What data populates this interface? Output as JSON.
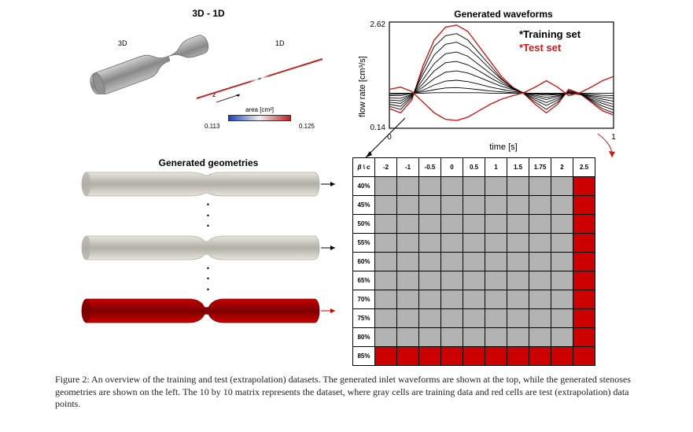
{
  "topLeft": {
    "title": "3D - 1D",
    "label3d": "3D",
    "label1d": "1D",
    "zLabel": "z",
    "colorbarTitle": "area [cm²]",
    "colorbarMin": "0.113",
    "colorbarMax": "0.125",
    "tube3dFill": "#a9a9a9",
    "tube3dStroke": "#6e6e6e",
    "line1dGradient": [
      "#2040c0",
      "#f0f0f0",
      "#c02020"
    ]
  },
  "waveformChart": {
    "title": "Generated waveforms",
    "xlabel": "time [s]",
    "ylabel": "flow rate [cm³/s]",
    "xlim": [
      0,
      1
    ],
    "ylim": [
      0.14,
      2.62
    ],
    "yTickTop": "2.62",
    "yTickBottom": "0.14",
    "xTickLeft": "0",
    "xTickRight": "1",
    "legend": {
      "train": "*Training set",
      "test": "*Test set",
      "trainColor": "#000000",
      "testColor": "#cc1a1a"
    },
    "series": [
      {
        "color": "#cc1a1a",
        "width": 1.4,
        "pts": [
          [
            0,
            0.6
          ],
          [
            0.05,
            0.5
          ],
          [
            0.1,
            0.8
          ],
          [
            0.15,
            1.6
          ],
          [
            0.2,
            2.2
          ],
          [
            0.25,
            2.5
          ],
          [
            0.3,
            2.55
          ],
          [
            0.35,
            2.4
          ],
          [
            0.4,
            2.05
          ],
          [
            0.45,
            1.7
          ],
          [
            0.5,
            1.35
          ],
          [
            0.55,
            1.1
          ],
          [
            0.6,
            0.95
          ],
          [
            0.65,
            0.7
          ],
          [
            0.7,
            0.5
          ],
          [
            0.75,
            0.7
          ],
          [
            0.8,
            1.05
          ],
          [
            0.85,
            0.95
          ],
          [
            0.9,
            0.75
          ],
          [
            0.95,
            0.55
          ],
          [
            1.0,
            0.45
          ]
        ]
      },
      {
        "color": "#000000",
        "width": 0.9,
        "pts": [
          [
            0,
            0.65
          ],
          [
            0.05,
            0.58
          ],
          [
            0.1,
            0.85
          ],
          [
            0.15,
            1.5
          ],
          [
            0.2,
            2.05
          ],
          [
            0.25,
            2.3
          ],
          [
            0.3,
            2.35
          ],
          [
            0.35,
            2.2
          ],
          [
            0.4,
            1.9
          ],
          [
            0.45,
            1.6
          ],
          [
            0.5,
            1.3
          ],
          [
            0.55,
            1.08
          ],
          [
            0.6,
            0.95
          ],
          [
            0.65,
            0.75
          ],
          [
            0.7,
            0.58
          ],
          [
            0.75,
            0.75
          ],
          [
            0.8,
            1.02
          ],
          [
            0.85,
            0.95
          ],
          [
            0.9,
            0.78
          ],
          [
            0.95,
            0.6
          ],
          [
            1.0,
            0.5
          ]
        ]
      },
      {
        "color": "#000000",
        "width": 0.9,
        "pts": [
          [
            0,
            0.7
          ],
          [
            0.05,
            0.65
          ],
          [
            0.1,
            0.88
          ],
          [
            0.15,
            1.4
          ],
          [
            0.2,
            1.85
          ],
          [
            0.25,
            2.1
          ],
          [
            0.3,
            2.15
          ],
          [
            0.35,
            2.02
          ],
          [
            0.4,
            1.78
          ],
          [
            0.45,
            1.52
          ],
          [
            0.5,
            1.28
          ],
          [
            0.55,
            1.08
          ],
          [
            0.6,
            0.96
          ],
          [
            0.65,
            0.8
          ],
          [
            0.7,
            0.67
          ],
          [
            0.75,
            0.8
          ],
          [
            0.8,
            1.0
          ],
          [
            0.85,
            0.94
          ],
          [
            0.9,
            0.8
          ],
          [
            0.95,
            0.66
          ],
          [
            1.0,
            0.57
          ]
        ]
      },
      {
        "color": "#000000",
        "width": 0.9,
        "pts": [
          [
            0,
            0.75
          ],
          [
            0.05,
            0.72
          ],
          [
            0.1,
            0.9
          ],
          [
            0.15,
            1.28
          ],
          [
            0.2,
            1.65
          ],
          [
            0.25,
            1.88
          ],
          [
            0.3,
            1.92
          ],
          [
            0.35,
            1.82
          ],
          [
            0.4,
            1.62
          ],
          [
            0.45,
            1.42
          ],
          [
            0.5,
            1.23
          ],
          [
            0.55,
            1.07
          ],
          [
            0.6,
            0.96
          ],
          [
            0.65,
            0.84
          ],
          [
            0.7,
            0.74
          ],
          [
            0.75,
            0.84
          ],
          [
            0.8,
            0.98
          ],
          [
            0.85,
            0.93
          ],
          [
            0.9,
            0.82
          ],
          [
            0.95,
            0.72
          ],
          [
            1.0,
            0.64
          ]
        ]
      },
      {
        "color": "#000000",
        "width": 0.9,
        "pts": [
          [
            0,
            0.8
          ],
          [
            0.05,
            0.78
          ],
          [
            0.1,
            0.92
          ],
          [
            0.15,
            1.18
          ],
          [
            0.2,
            1.48
          ],
          [
            0.25,
            1.67
          ],
          [
            0.3,
            1.7
          ],
          [
            0.35,
            1.62
          ],
          [
            0.4,
            1.48
          ],
          [
            0.45,
            1.32
          ],
          [
            0.5,
            1.18
          ],
          [
            0.55,
            1.06
          ],
          [
            0.6,
            0.97
          ],
          [
            0.65,
            0.88
          ],
          [
            0.7,
            0.81
          ],
          [
            0.75,
            0.88
          ],
          [
            0.8,
            0.97
          ],
          [
            0.85,
            0.93
          ],
          [
            0.9,
            0.85
          ],
          [
            0.95,
            0.77
          ],
          [
            1.0,
            0.7
          ]
        ]
      },
      {
        "color": "#000000",
        "width": 0.9,
        "pts": [
          [
            0,
            0.85
          ],
          [
            0.05,
            0.84
          ],
          [
            0.1,
            0.93
          ],
          [
            0.15,
            1.1
          ],
          [
            0.2,
            1.3
          ],
          [
            0.25,
            1.45
          ],
          [
            0.3,
            1.48
          ],
          [
            0.35,
            1.43
          ],
          [
            0.4,
            1.33
          ],
          [
            0.45,
            1.22
          ],
          [
            0.5,
            1.12
          ],
          [
            0.55,
            1.04
          ],
          [
            0.6,
            0.97
          ],
          [
            0.65,
            0.91
          ],
          [
            0.7,
            0.86
          ],
          [
            0.75,
            0.9
          ],
          [
            0.8,
            0.95
          ],
          [
            0.85,
            0.93
          ],
          [
            0.9,
            0.88
          ],
          [
            0.95,
            0.82
          ],
          [
            1.0,
            0.77
          ]
        ]
      },
      {
        "color": "#000000",
        "width": 0.9,
        "pts": [
          [
            0,
            0.9
          ],
          [
            0.05,
            0.9
          ],
          [
            0.1,
            0.95
          ],
          [
            0.15,
            1.03
          ],
          [
            0.2,
            1.15
          ],
          [
            0.25,
            1.24
          ],
          [
            0.3,
            1.26
          ],
          [
            0.35,
            1.23
          ],
          [
            0.4,
            1.17
          ],
          [
            0.45,
            1.1
          ],
          [
            0.5,
            1.05
          ],
          [
            0.55,
            1.0
          ],
          [
            0.6,
            0.97
          ],
          [
            0.65,
            0.94
          ],
          [
            0.7,
            0.91
          ],
          [
            0.75,
            0.93
          ],
          [
            0.8,
            0.95
          ],
          [
            0.85,
            0.93
          ],
          [
            0.9,
            0.9
          ],
          [
            0.95,
            0.87
          ],
          [
            1.0,
            0.84
          ]
        ]
      },
      {
        "color": "#000000",
        "width": 0.9,
        "pts": [
          [
            0,
            0.93
          ],
          [
            0.05,
            0.94
          ],
          [
            0.1,
            0.96
          ],
          [
            0.15,
            0.99
          ],
          [
            0.2,
            1.04
          ],
          [
            0.25,
            1.08
          ],
          [
            0.3,
            1.09
          ],
          [
            0.35,
            1.07
          ],
          [
            0.4,
            1.04
          ],
          [
            0.45,
            1.01
          ],
          [
            0.5,
            0.99
          ],
          [
            0.55,
            0.97
          ],
          [
            0.6,
            0.96
          ],
          [
            0.65,
            0.95
          ],
          [
            0.7,
            0.94
          ],
          [
            0.75,
            0.94
          ],
          [
            0.8,
            0.95
          ],
          [
            0.85,
            0.94
          ],
          [
            0.9,
            0.93
          ],
          [
            0.95,
            0.91
          ],
          [
            1.0,
            0.9
          ]
        ]
      },
      {
        "color": "#000000",
        "width": 0.9,
        "pts": [
          [
            0,
            0.96
          ],
          [
            0.05,
            0.96
          ],
          [
            0.1,
            0.96
          ],
          [
            0.15,
            0.96
          ],
          [
            0.2,
            0.97
          ],
          [
            0.25,
            0.97
          ],
          [
            0.3,
            0.97
          ],
          [
            0.35,
            0.97
          ],
          [
            0.4,
            0.97
          ],
          [
            0.45,
            0.96
          ],
          [
            0.5,
            0.96
          ],
          [
            0.55,
            0.96
          ],
          [
            0.6,
            0.96
          ],
          [
            0.65,
            0.96
          ],
          [
            0.7,
            0.96
          ],
          [
            0.75,
            0.96
          ],
          [
            0.8,
            0.96
          ],
          [
            0.85,
            0.96
          ],
          [
            0.9,
            0.96
          ],
          [
            0.95,
            0.96
          ],
          [
            1.0,
            0.96
          ]
        ]
      },
      {
        "color": "#cc1a1a",
        "width": 1.4,
        "pts": [
          [
            0,
            1.05
          ],
          [
            0.05,
            1.1
          ],
          [
            0.1,
            1.0
          ],
          [
            0.15,
            0.75
          ],
          [
            0.2,
            0.5
          ],
          [
            0.25,
            0.35
          ],
          [
            0.3,
            0.32
          ],
          [
            0.35,
            0.4
          ],
          [
            0.4,
            0.55
          ],
          [
            0.45,
            0.7
          ],
          [
            0.5,
            0.82
          ],
          [
            0.55,
            0.9
          ],
          [
            0.6,
            0.97
          ],
          [
            0.65,
            1.1
          ],
          [
            0.7,
            1.25
          ],
          [
            0.75,
            1.1
          ],
          [
            0.8,
            0.9
          ],
          [
            0.85,
            0.97
          ],
          [
            0.9,
            1.1
          ],
          [
            0.95,
            1.25
          ],
          [
            1.0,
            1.35
          ]
        ]
      }
    ],
    "background": "#ffffff",
    "axisColor": "#000000",
    "fontMain": 12,
    "fontLegend": 13
  },
  "geometries": {
    "title": "Generated geometries",
    "tubes": [
      {
        "constrict": 0.25,
        "fill": "#e8e5de",
        "stroke": "#b0aea5"
      },
      {
        "constrict": 0.45,
        "fill": "#e8e5de",
        "stroke": "#b0aea5"
      },
      {
        "constrict": 0.72,
        "fill": "#cc0000",
        "stroke": "#7a0000"
      }
    ],
    "dots": "·\n·\n·"
  },
  "matrix": {
    "cornerLabel": "β \\ c",
    "colHeaders": [
      "-2",
      "-1",
      "-0.5",
      "0",
      "0.5",
      "1",
      "1.5",
      "1.75",
      "2",
      "2.5"
    ],
    "rowHeaders": [
      "40%",
      "45%",
      "50%",
      "55%",
      "60%",
      "65%",
      "70%",
      "75%",
      "80%",
      "85%"
    ],
    "grayColor": "#b3b3b3",
    "redColor": "#cc0000",
    "testRowIdx": 9,
    "testColIdx": 9
  },
  "arrows": {
    "color": "#000000"
  },
  "caption": {
    "label": "Figure 2:",
    "text": " An overview of the training and test (extrapolation) datasets. The generated inlet waveforms are shown at the top, while the generated stenoses geometries are shown on the left. The 10 by 10 matrix represents the dataset, where gray cells are training data and red cells are test (extrapolation) data points."
  }
}
